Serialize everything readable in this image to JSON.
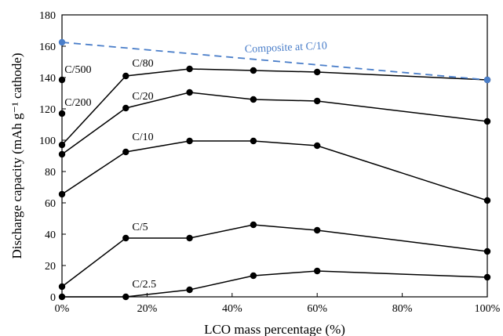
{
  "chart_data": {
    "type": "line",
    "xlabel": "LCO mass percentage (%)",
    "ylabel": "Discharge capacity (mAh g⁻¹ cathode)",
    "xlim": [
      0,
      100
    ],
    "ylim": [
      0,
      180
    ],
    "x_ticks": [
      {
        "value": 0,
        "label": "0%"
      },
      {
        "value": 20,
        "label": "20%"
      },
      {
        "value": 40,
        "label": "40%"
      },
      {
        "value": 60,
        "label": "60%"
      },
      {
        "value": 80,
        "label": "80%"
      },
      {
        "value": 100,
        "label": "100%"
      }
    ],
    "y_ticks": [
      {
        "value": 0,
        "label": "0"
      },
      {
        "value": 20,
        "label": "20"
      },
      {
        "value": 40,
        "label": "40"
      },
      {
        "value": 60,
        "label": "60"
      },
      {
        "value": 80,
        "label": "80"
      },
      {
        "value": 100,
        "label": "100"
      },
      {
        "value": 120,
        "label": "120"
      },
      {
        "value": 140,
        "label": "140"
      },
      {
        "value": 160,
        "label": "160"
      },
      {
        "value": 180,
        "label": "180"
      }
    ],
    "grid": false,
    "series": [
      {
        "name": "C/80",
        "color": "#000000",
        "style": "solid",
        "x": [
          0,
          15,
          30,
          45,
          60,
          100
        ],
        "y": [
          97,
          141,
          145.5,
          144.5,
          143.5,
          138.5
        ],
        "label_at": [
          16.5,
          147
        ]
      },
      {
        "name": "C/20",
        "color": "#000000",
        "style": "solid",
        "x": [
          0,
          15,
          30,
          45,
          60,
          100
        ],
        "y": [
          91,
          120.5,
          130.5,
          126,
          125,
          112
        ],
        "label_at": [
          16.5,
          126
        ]
      },
      {
        "name": "C/10",
        "color": "#000000",
        "style": "solid",
        "x": [
          0,
          15,
          30,
          45,
          60,
          100
        ],
        "y": [
          65.5,
          92.5,
          99.5,
          99.5,
          96.5,
          61.5
        ],
        "label_at": [
          16.5,
          100
        ]
      },
      {
        "name": "C/5",
        "color": "#000000",
        "style": "solid",
        "x": [
          0,
          15,
          30,
          45,
          60,
          100
        ],
        "y": [
          6.5,
          37.5,
          37.5,
          46,
          42.5,
          29
        ],
        "label_at": [
          16.5,
          42.5
        ]
      },
      {
        "name": "C/2.5",
        "color": "#000000",
        "style": "solid",
        "x": [
          0,
          15,
          30,
          45,
          60,
          100
        ],
        "y": [
          0,
          0,
          4.5,
          13.5,
          16.5,
          12.5
        ],
        "label_at": [
          16.5,
          6
        ]
      },
      {
        "name": "Composite at C/10",
        "color": "#4a7ec9",
        "style": "dashed",
        "x": [
          0,
          100
        ],
        "y": [
          162.5,
          138.5
        ],
        "label_at": [
          43,
          156
        ]
      }
    ],
    "standalone_points": [
      {
        "name": "C/500",
        "x": 0,
        "y": 138.5,
        "label_at": [
          0.6,
          143
        ]
      },
      {
        "name": "C/200",
        "x": 0,
        "y": 117,
        "label_at": [
          0.6,
          122
        ]
      }
    ]
  }
}
